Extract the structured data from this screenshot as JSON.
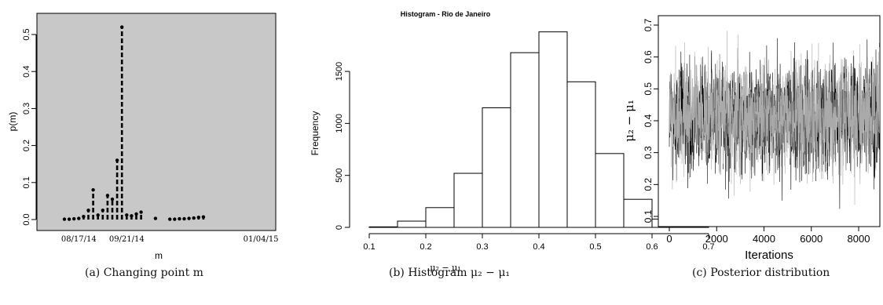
{
  "captions": {
    "a": "(a) Changing point m",
    "b": "(b) Histogram μ₂ − μ₁",
    "c": "(c) Posterior distribution"
  },
  "chart_data": [
    {
      "type": "scatter",
      "title": "",
      "xlabel": "m",
      "ylabel": "p(m)",
      "ylim": [
        0,
        0.5
      ],
      "yticks": [
        0.0,
        0.1,
        0.2,
        0.3,
        0.4,
        0.5
      ],
      "ytick_labels": [
        "0.0",
        "0.1",
        "0.2",
        "0.3",
        "0.4",
        "0.5"
      ],
      "xtick_labels": [
        "08/17/14",
        "09/21/14",
        "01/04/15"
      ],
      "xtick_positions": [
        4,
        14,
        42
      ],
      "background": "#c8c8c8",
      "x": [
        1,
        2,
        3,
        4,
        5,
        6,
        7,
        8,
        9,
        10,
        11,
        12,
        13,
        14,
        15,
        16,
        17,
        18,
        19,
        20,
        21,
        22,
        23,
        24,
        25,
        26,
        27,
        28,
        29,
        30,
        31,
        32,
        33,
        34,
        35,
        36,
        37,
        38,
        39,
        40,
        41,
        42,
        43,
        44,
        45
      ],
      "values": [
        0.001,
        0.001,
        0.002,
        0.003,
        0.008,
        0.025,
        0.08,
        0.012,
        0.025,
        0.065,
        0.055,
        0.16,
        0.52,
        0.012,
        0.01,
        0.015,
        0.02,
        null,
        null,
        0.003,
        null,
        null,
        0.001,
        0.001,
        0.002,
        0.002,
        0.003,
        0.004,
        0.006,
        0.007,
        null,
        null,
        null,
        null,
        null,
        null,
        null,
        null,
        null,
        null,
        null,
        null,
        null,
        null,
        null
      ]
    },
    {
      "type": "bar",
      "title": "Histogram - Rio de Janeiro",
      "xlabel": "μ₂ − μ₁",
      "ylabel": "Frequency",
      "xlim": [
        0.1,
        0.7
      ],
      "ylim": [
        0,
        1900
      ],
      "xticks": [
        "0.1",
        "0.2",
        "0.3",
        "0.4",
        "0.5",
        "0.6",
        "0.7"
      ],
      "yticks": [
        "0",
        "500",
        "1000",
        "1500"
      ],
      "bins": [
        [
          0.1,
          0.15
        ],
        [
          0.15,
          0.2
        ],
        [
          0.2,
          0.25
        ],
        [
          0.25,
          0.3
        ],
        [
          0.3,
          0.35
        ],
        [
          0.35,
          0.4
        ],
        [
          0.4,
          0.45
        ],
        [
          0.45,
          0.5
        ],
        [
          0.5,
          0.55
        ],
        [
          0.55,
          0.6
        ],
        [
          0.6,
          0.65
        ],
        [
          0.65,
          0.7
        ]
      ],
      "values": [
        5,
        60,
        190,
        520,
        1150,
        1680,
        1880,
        1400,
        710,
        270,
        80,
        10
      ]
    },
    {
      "type": "line",
      "title": "",
      "xlabel": "Iterations",
      "ylabel": "μ₂ − μ₁",
      "xlim": [
        0,
        9000
      ],
      "ylim": [
        0.08,
        0.72
      ],
      "xticks": [
        "0",
        "2000",
        "4000",
        "6000",
        "8000"
      ],
      "yticks": [
        "0.1",
        "0.2",
        "0.3",
        "0.4",
        "0.5",
        "0.6",
        "0.7"
      ],
      "series": [
        {
          "color": "#000000",
          "mean": 0.41,
          "sd": 0.085,
          "n": 9000
        },
        {
          "color": "#aaaaaa",
          "mean": 0.41,
          "sd": 0.085,
          "n": 9000
        }
      ]
    }
  ]
}
